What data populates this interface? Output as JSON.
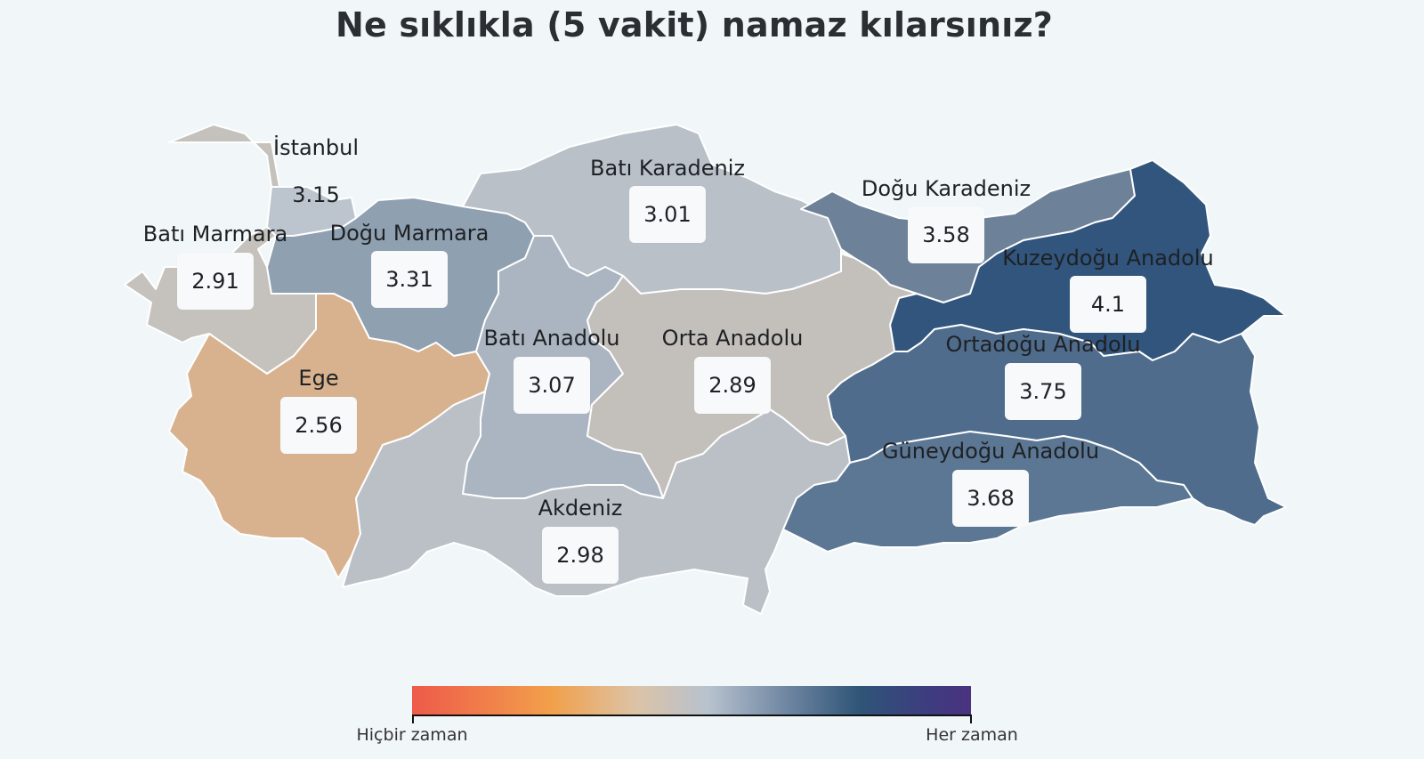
{
  "title": "Ne sıklıkla (5 vakit) namaz kılarsınız?",
  "regions": [
    {
      "name": "İstanbul",
      "value": "3.15",
      "color": "#bcc4ce"
    },
    {
      "name": "Batı Marmara",
      "value": "2.91",
      "color": "#c5c1bc"
    },
    {
      "name": "Doğu Marmara",
      "value": "3.31",
      "color": "#8fa0b1"
    },
    {
      "name": "Ege",
      "value": "2.56",
      "color": "#d8b28e"
    },
    {
      "name": "Batı Karadeniz",
      "value": "3.01",
      "color": "#b9c0c8"
    },
    {
      "name": "Doğu Karadeniz",
      "value": "3.58",
      "color": "#6d8299"
    },
    {
      "name": "Kuzeydoğu Anadolu",
      "value": "4.1",
      "color": "#31557c"
    },
    {
      "name": "Batı Anadolu",
      "value": "3.07",
      "color": "#abb5c1"
    },
    {
      "name": "Orta Anadolu",
      "value": "2.89",
      "color": "#c3bfba"
    },
    {
      "name": "Ortadoğu Anadolu",
      "value": "3.75",
      "color": "#4f6c8c"
    },
    {
      "name": "Güneydoğu Anadolu",
      "value": "3.68",
      "color": "#5c7793"
    },
    {
      "name": "Akdeniz",
      "value": "2.98",
      "color": "#bac0c6"
    }
  ],
  "legend": {
    "min_label": "Hiçbir zaman",
    "max_label": "Her zaman"
  }
}
